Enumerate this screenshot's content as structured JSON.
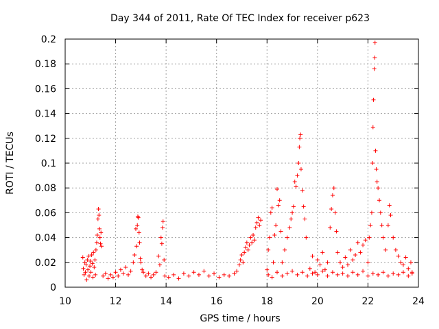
{
  "chart_data": {
    "type": "scatter",
    "title": "Day 344 of 2011, Rate Of TEC Index for receiver p623",
    "xlabel": "GPS time / hours",
    "ylabel": "ROTI / TECUs",
    "xlim": [
      10,
      24
    ],
    "ylim": [
      0,
      0.2
    ],
    "xticks": [
      "10",
      "12",
      "14",
      "16",
      "18",
      "20",
      "22",
      "24"
    ],
    "yticks": [
      "0",
      "0.02",
      "0.04",
      "0.06",
      "0.08",
      "0.1",
      "0.12",
      "0.14",
      "0.16",
      "0.18",
      "0.2"
    ],
    "grid": true,
    "marker": "+",
    "color": "#ff0000",
    "series": [
      {
        "points": [
          [
            10.7,
            0.024
          ],
          [
            10.72,
            0.015
          ],
          [
            10.75,
            0.01
          ],
          [
            10.78,
            0.02
          ],
          [
            10.8,
            0.012
          ],
          [
            10.83,
            0.018
          ],
          [
            10.85,
            0.006
          ],
          [
            10.88,
            0.022
          ],
          [
            10.9,
            0.014
          ],
          [
            10.93,
            0.025
          ],
          [
            10.95,
            0.009
          ],
          [
            10.98,
            0.017
          ],
          [
            11.0,
            0.021
          ],
          [
            11.02,
            0.012
          ],
          [
            11.05,
            0.026
          ],
          [
            11.08,
            0.019
          ],
          [
            11.1,
            0.008
          ],
          [
            11.12,
            0.028
          ],
          [
            11.15,
            0.016
          ],
          [
            11.18,
            0.022
          ],
          [
            11.2,
            0.01
          ],
          [
            11.22,
            0.03
          ],
          [
            11.25,
            0.036
          ],
          [
            11.27,
            0.042
          ],
          [
            11.3,
            0.055
          ],
          [
            11.32,
            0.063
          ],
          [
            11.34,
            0.058
          ],
          [
            11.36,
            0.047
          ],
          [
            11.38,
            0.04
          ],
          [
            11.4,
            0.035
          ],
          [
            11.42,
            0.044
          ],
          [
            11.44,
            0.033
          ],
          [
            11.5,
            0.009
          ],
          [
            11.6,
            0.011
          ],
          [
            11.7,
            0.007
          ],
          [
            11.8,
            0.01
          ],
          [
            11.9,
            0.008
          ],
          [
            12.0,
            0.012
          ],
          [
            12.1,
            0.009
          ],
          [
            12.2,
            0.014
          ],
          [
            12.3,
            0.011
          ],
          [
            12.4,
            0.016
          ],
          [
            12.5,
            0.01
          ],
          [
            12.6,
            0.013
          ],
          [
            12.7,
            0.02
          ],
          [
            12.75,
            0.026
          ],
          [
            12.8,
            0.047
          ],
          [
            12.83,
            0.033
          ],
          [
            12.86,
            0.05
          ],
          [
            12.88,
            0.057
          ],
          [
            12.9,
            0.056
          ],
          [
            12.93,
            0.044
          ],
          [
            12.95,
            0.036
          ],
          [
            12.98,
            0.023
          ],
          [
            13.0,
            0.02
          ],
          [
            13.05,
            0.014
          ],
          [
            13.1,
            0.012
          ],
          [
            13.2,
            0.009
          ],
          [
            13.3,
            0.011
          ],
          [
            13.4,
            0.008
          ],
          [
            13.5,
            0.01
          ],
          [
            13.6,
            0.012
          ],
          [
            13.7,
            0.025
          ],
          [
            13.75,
            0.018
          ],
          [
            13.8,
            0.04
          ],
          [
            13.83,
            0.035
          ],
          [
            13.86,
            0.048
          ],
          [
            13.88,
            0.053
          ],
          [
            13.92,
            0.022
          ],
          [
            13.95,
            0.009
          ],
          [
            14.1,
            0.008
          ],
          [
            14.3,
            0.01
          ],
          [
            14.5,
            0.007
          ],
          [
            14.7,
            0.011
          ],
          [
            14.9,
            0.009
          ],
          [
            15.1,
            0.012
          ],
          [
            15.3,
            0.01
          ],
          [
            15.5,
            0.013
          ],
          [
            15.7,
            0.009
          ],
          [
            15.9,
            0.011
          ],
          [
            16.1,
            0.008
          ],
          [
            16.3,
            0.01
          ],
          [
            16.5,
            0.009
          ],
          [
            16.7,
            0.011
          ],
          [
            16.8,
            0.013
          ],
          [
            16.9,
            0.018
          ],
          [
            16.95,
            0.022
          ],
          [
            17.0,
            0.026
          ],
          [
            17.05,
            0.02
          ],
          [
            17.1,
            0.028
          ],
          [
            17.15,
            0.032
          ],
          [
            17.2,
            0.036
          ],
          [
            17.25,
            0.03
          ],
          [
            17.3,
            0.034
          ],
          [
            17.35,
            0.04
          ],
          [
            17.4,
            0.036
          ],
          [
            17.45,
            0.042
          ],
          [
            17.5,
            0.038
          ],
          [
            17.55,
            0.048
          ],
          [
            17.6,
            0.052
          ],
          [
            17.65,
            0.056
          ],
          [
            17.7,
            0.05
          ],
          [
            17.75,
            0.054
          ],
          [
            18.0,
            0.014
          ],
          [
            18.05,
            0.03
          ],
          [
            18.1,
            0.04
          ],
          [
            18.15,
            0.06
          ],
          [
            18.2,
            0.064
          ],
          [
            18.25,
            0.02
          ],
          [
            18.3,
            0.042
          ],
          [
            18.35,
            0.05
          ],
          [
            18.4,
            0.079
          ],
          [
            18.45,
            0.066
          ],
          [
            18.5,
            0.07
          ],
          [
            18.55,
            0.045
          ],
          [
            18.6,
            0.02
          ],
          [
            18.7,
            0.03
          ],
          [
            18.8,
            0.04
          ],
          [
            18.9,
            0.048
          ],
          [
            18.95,
            0.055
          ],
          [
            19.0,
            0.06
          ],
          [
            19.05,
            0.065
          ],
          [
            19.1,
            0.085
          ],
          [
            19.15,
            0.081
          ],
          [
            19.2,
            0.09
          ],
          [
            19.25,
            0.1
          ],
          [
            19.28,
            0.113
          ],
          [
            19.3,
            0.12
          ],
          [
            19.33,
            0.123
          ],
          [
            19.35,
            0.095
          ],
          [
            19.4,
            0.078
          ],
          [
            19.45,
            0.065
          ],
          [
            19.5,
            0.055
          ],
          [
            19.55,
            0.04
          ],
          [
            19.7,
            0.015
          ],
          [
            19.8,
            0.025
          ],
          [
            19.9,
            0.012
          ],
          [
            20.0,
            0.022
          ],
          [
            20.1,
            0.018
          ],
          [
            20.2,
            0.028
          ],
          [
            20.3,
            0.014
          ],
          [
            20.4,
            0.02
          ],
          [
            20.5,
            0.048
          ],
          [
            20.55,
            0.063
          ],
          [
            20.6,
            0.074
          ],
          [
            20.65,
            0.08
          ],
          [
            20.7,
            0.06
          ],
          [
            20.75,
            0.045
          ],
          [
            20.8,
            0.028
          ],
          [
            20.9,
            0.02
          ],
          [
            21.0,
            0.016
          ],
          [
            21.1,
            0.024
          ],
          [
            21.2,
            0.018
          ],
          [
            21.3,
            0.03
          ],
          [
            21.4,
            0.022
          ],
          [
            21.5,
            0.026
          ],
          [
            21.6,
            0.036
          ],
          [
            21.7,
            0.028
          ],
          [
            21.8,
            0.034
          ],
          [
            21.9,
            0.038
          ],
          [
            22.0,
            0.02
          ],
          [
            22.05,
            0.04
          ],
          [
            22.1,
            0.05
          ],
          [
            22.15,
            0.06
          ],
          [
            22.18,
            0.1
          ],
          [
            22.2,
            0.129
          ],
          [
            22.22,
            0.151
          ],
          [
            22.25,
            0.176
          ],
          [
            22.27,
            0.185
          ],
          [
            22.28,
            0.197
          ],
          [
            22.3,
            0.11
          ],
          [
            22.33,
            0.095
          ],
          [
            22.36,
            0.085
          ],
          [
            22.4,
            0.08
          ],
          [
            22.45,
            0.07
          ],
          [
            22.5,
            0.06
          ],
          [
            22.55,
            0.05
          ],
          [
            22.6,
            0.04
          ],
          [
            22.7,
            0.03
          ],
          [
            22.8,
            0.05
          ],
          [
            22.85,
            0.066
          ],
          [
            22.9,
            0.058
          ],
          [
            23.0,
            0.04
          ],
          [
            23.1,
            0.03
          ],
          [
            23.2,
            0.025
          ],
          [
            23.3,
            0.02
          ],
          [
            23.4,
            0.018
          ],
          [
            23.5,
            0.024
          ],
          [
            23.6,
            0.015
          ],
          [
            23.7,
            0.02
          ],
          [
            23.75,
            0.012
          ],
          [
            18.05,
            0.01
          ],
          [
            18.2,
            0.008
          ],
          [
            18.4,
            0.012
          ],
          [
            18.6,
            0.009
          ],
          [
            18.8,
            0.011
          ],
          [
            19.0,
            0.013
          ],
          [
            19.2,
            0.01
          ],
          [
            19.4,
            0.012
          ],
          [
            19.6,
            0.009
          ],
          [
            19.8,
            0.011
          ],
          [
            20.0,
            0.01
          ],
          [
            20.2,
            0.013
          ],
          [
            20.4,
            0.009
          ],
          [
            20.6,
            0.012
          ],
          [
            20.8,
            0.01
          ],
          [
            21.0,
            0.011
          ],
          [
            21.2,
            0.009
          ],
          [
            21.4,
            0.012
          ],
          [
            21.6,
            0.01
          ],
          [
            21.8,
            0.013
          ],
          [
            22.0,
            0.009
          ],
          [
            22.2,
            0.011
          ],
          [
            22.4,
            0.01
          ],
          [
            22.6,
            0.012
          ],
          [
            22.8,
            0.009
          ],
          [
            23.0,
            0.011
          ],
          [
            23.2,
            0.01
          ],
          [
            23.4,
            0.012
          ],
          [
            23.6,
            0.009
          ],
          [
            23.75,
            0.011
          ]
        ]
      }
    ]
  }
}
